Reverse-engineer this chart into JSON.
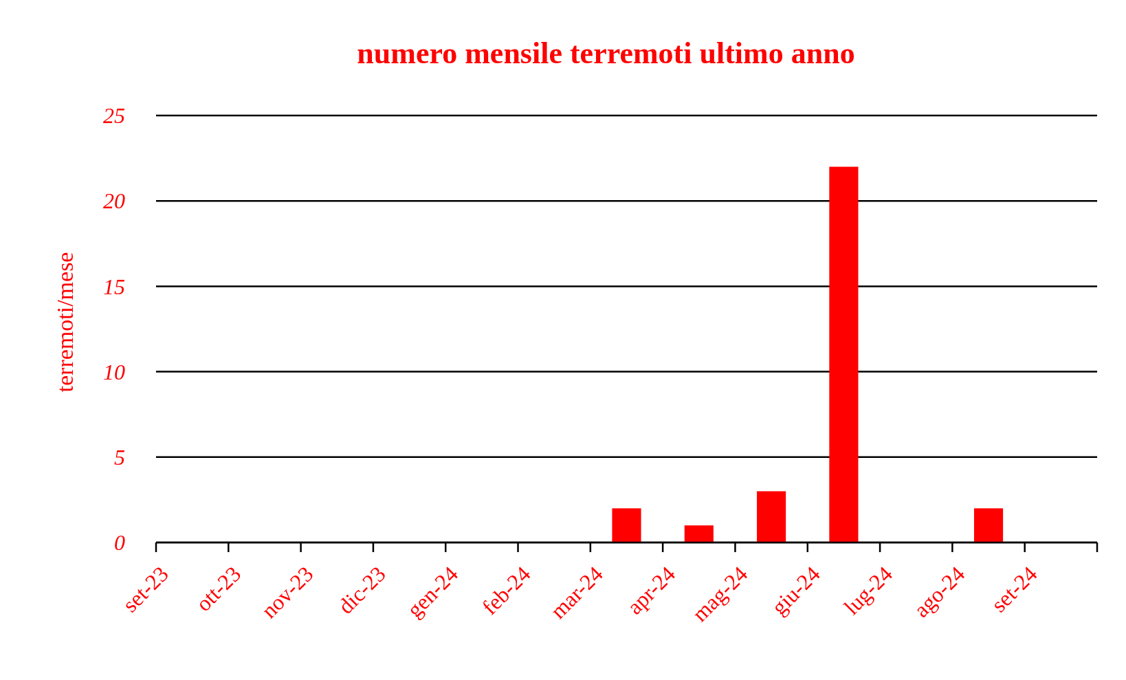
{
  "chart_data": {
    "type": "bar",
    "title": "numero mensile terremoti ultimo anno",
    "ylabel": "terremoti/mese",
    "categories": [
      "set-23",
      "ott-23",
      "nov-23",
      "dic-23",
      "gen-24",
      "feb-24",
      "mar-24",
      "apr-24",
      "mag-24",
      "giu-24",
      "lug-24",
      "ago-24",
      "set-24"
    ],
    "values": [
      0,
      0,
      0,
      0,
      0,
      0,
      2,
      1,
      3,
      22,
      0,
      2,
      0
    ],
    "color": "#ff0000",
    "ylim": [
      0,
      25
    ],
    "yticks": [
      0,
      5,
      10,
      15,
      20,
      25
    ],
    "grid": "y"
  }
}
